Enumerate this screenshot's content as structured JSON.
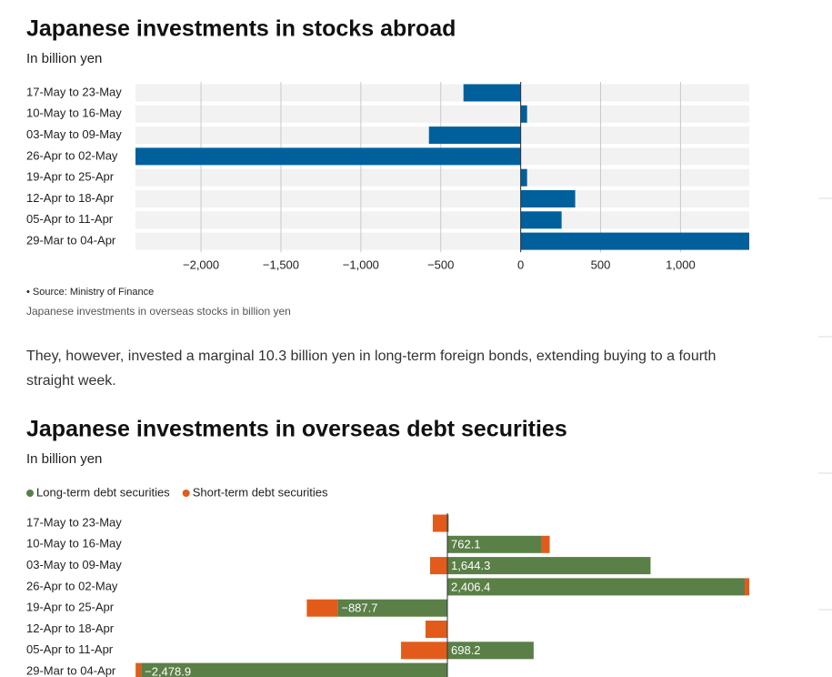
{
  "chart_data": [
    {
      "type": "bar",
      "orientation": "horizontal",
      "title": "Japanese investments in stocks abroad",
      "subtitle": "In billion yen",
      "categories": [
        "17-May to 23-May",
        "10-May to 16-May",
        "03-May to 09-May",
        "26-Apr to 02-May",
        "19-Apr to 25-Apr",
        "12-Apr to 18-Apr",
        "05-Apr to 11-Apr",
        "29-Mar to 04-Apr"
      ],
      "values": [
        -358,
        40,
        -574,
        -2410,
        40,
        341,
        256,
        1430
      ],
      "color": "#00609c",
      "xlim": [
        -2410,
        1430
      ],
      "xticks": [
        {
          "value": -2000,
          "label": "−2,000"
        },
        {
          "value": -1500,
          "label": "−1,500"
        },
        {
          "value": -1000,
          "label": "−1,000"
        },
        {
          "value": -500,
          "label": "−500"
        },
        0,
        500,
        {
          "value": 1000,
          "label": "1,000"
        }
      ],
      "grid": true,
      "source": "• Source: Ministry of Finance",
      "caption": "Japanese investments in overseas stocks in billion yen"
    },
    {
      "type": "stacked_bar",
      "orientation": "horizontal",
      "title": "Japanese investments in overseas debt securities",
      "subtitle": "In billion yen",
      "categories": [
        "17-May to 23-May",
        "10-May to 16-May",
        "03-May to 09-May",
        "26-Apr to 02-May",
        "19-Apr to 25-Apr",
        "12-Apr to 18-Apr",
        "05-Apr to 11-Apr",
        "29-Mar to 04-Apr"
      ],
      "series": [
        {
          "name": "Long-term debt securities",
          "color": "#5a7f47",
          "values": [
            10.3,
            762.1,
            1644.3,
            2406.4,
            -887.7,
            0,
            698.2,
            -2478.9
          ],
          "value_labels": [
            null,
            "762.1",
            "1,644.3",
            "2,406.4",
            "−887.7",
            null,
            "698.2",
            "−2,478.9"
          ]
        },
        {
          "name": "Short-term debt securities",
          "color": "#e35b1a",
          "values": [
            -118,
            66,
            -140,
            37,
            -250,
            -177,
            -375,
            -44
          ]
        }
      ],
      "xlim": [
        -2524,
        2443
      ],
      "legend": "top"
    }
  ],
  "paragraph": "They, however, invested a marginal 10.3 billion yen in long-term foreign bonds, extending buying to a fourth straight week."
}
